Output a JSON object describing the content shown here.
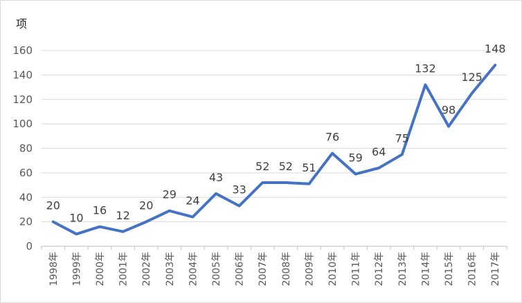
{
  "chart_data": {
    "type": "line",
    "title": "",
    "xlabel": "",
    "ylabel": "项",
    "ylim": [
      0,
      160
    ],
    "yticks": [
      0,
      20,
      40,
      60,
      80,
      100,
      120,
      140,
      160
    ],
    "grid": true,
    "legend": "none",
    "categories": [
      "1998年",
      "1999年",
      "2000年",
      "2001年",
      "2002年",
      "2003年",
      "2004年",
      "2005年",
      "2006年",
      "2007年",
      "2008年",
      "2009年",
      "2010年",
      "2011年",
      "2012年",
      "2013年",
      "2014年",
      "2015年",
      "2016年",
      "2017年"
    ],
    "series": [
      {
        "values": [
          20,
          10,
          16,
          12,
          20,
          29,
          24,
          43,
          33,
          52,
          52,
          51,
          76,
          59,
          64,
          75,
          132,
          98,
          125,
          148
        ],
        "color": "#4472c4"
      }
    ]
  }
}
